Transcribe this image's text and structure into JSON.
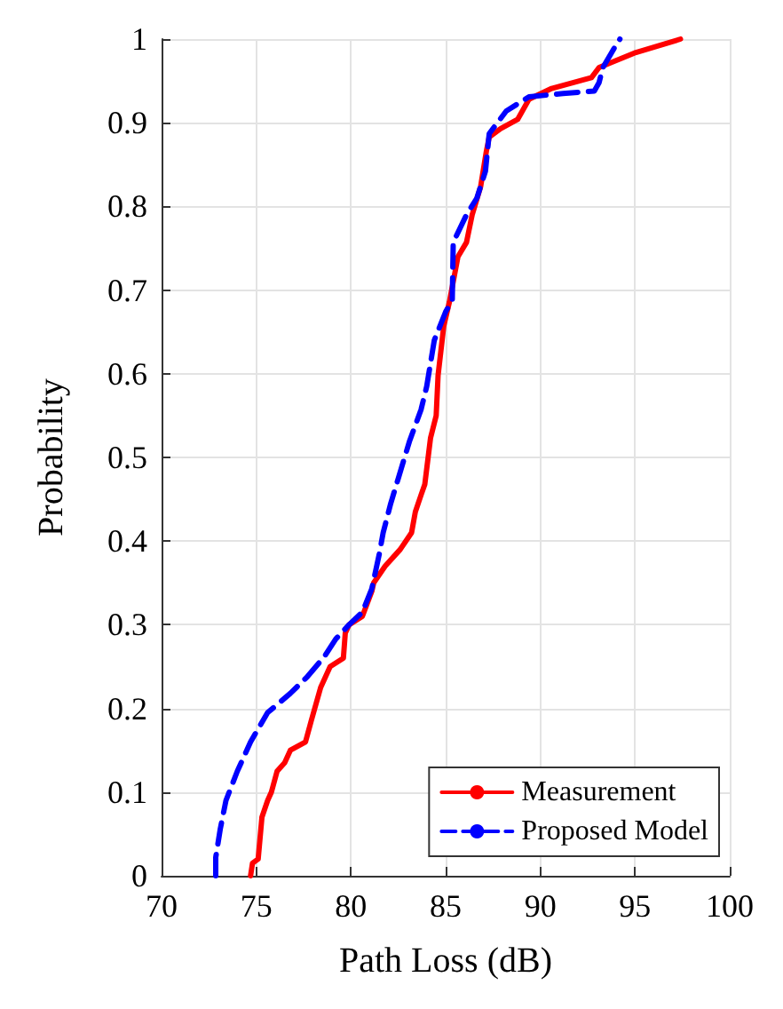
{
  "chart_data": {
    "type": "line",
    "xlabel": "Path Loss (dB)",
    "ylabel": "Probability",
    "xlim": [
      70,
      100
    ],
    "xticks": [
      70,
      75,
      80,
      85,
      90,
      95,
      100
    ],
    "ylim": [
      0,
      1
    ],
    "yticks": [
      0,
      0.1,
      0.2,
      0.3,
      0.4,
      0.5,
      0.6,
      0.7,
      0.8,
      0.9,
      1
    ],
    "grid": true,
    "legend": "bottom right",
    "marker": "none",
    "series": [
      {
        "name": "Measurement",
        "color": "#ff0000",
        "line_style": "solid",
        "x": [
          74.7,
          74.8,
          75.1,
          75.3,
          75.6,
          75.8,
          76.1,
          76.5,
          76.8,
          77.6,
          77.9,
          78.4,
          78.9,
          79.6,
          79.7,
          79.9,
          80.6,
          81.1,
          81.2,
          81.8,
          82.6,
          83.2,
          83.4,
          83.7,
          83.9,
          84.2,
          84.5,
          84.6,
          84.9,
          85.2,
          85.65,
          86.1,
          86.4,
          86.85,
          87.15,
          87.3,
          87.9,
          88.8,
          89.4,
          90.6,
          92.7,
          93.1,
          95.05,
          97.4
        ],
        "values": [
          0,
          0.015,
          0.02,
          0.07,
          0.09,
          0.1,
          0.125,
          0.135,
          0.15,
          0.16,
          0.185,
          0.225,
          0.25,
          0.26,
          0.29,
          0.3,
          0.31,
          0.34,
          0.35,
          0.37,
          0.39,
          0.41,
          0.435,
          0.455,
          0.468,
          0.523,
          0.55,
          0.598,
          0.657,
          0.686,
          0.74,
          0.757,
          0.79,
          0.824,
          0.866,
          0.883,
          0.893,
          0.904,
          0.928,
          0.941,
          0.954,
          0.966,
          0.984,
          1
        ]
      },
      {
        "name": "Proposed Model",
        "color": "#0000ff",
        "line_style": "dashed",
        "x": [
          72.86,
          72.86,
          73.1,
          73.4,
          74.0,
          74.7,
          75.6,
          76.8,
          77.7,
          78.6,
          79.2,
          79.9,
          80.6,
          81.1,
          81.5,
          81.7,
          82.1,
          82.5,
          83.1,
          83.7,
          84.0,
          84.4,
          85.0,
          85.35,
          85.4,
          86.1,
          86.65,
          87.1,
          87.3,
          88.2,
          89.4,
          91.2,
          92.85,
          93.1,
          93.3,
          94.0,
          94.2
        ],
        "values": [
          0,
          0.022,
          0.056,
          0.09,
          0.125,
          0.16,
          0.195,
          0.218,
          0.238,
          0.262,
          0.283,
          0.3,
          0.315,
          0.343,
          0.385,
          0.41,
          0.445,
          0.475,
          0.52,
          0.557,
          0.585,
          0.64,
          0.674,
          0.688,
          0.757,
          0.79,
          0.81,
          0.842,
          0.887,
          0.914,
          0.931,
          0.935,
          0.938,
          0.948,
          0.966,
          0.993,
          1
        ]
      }
    ]
  }
}
